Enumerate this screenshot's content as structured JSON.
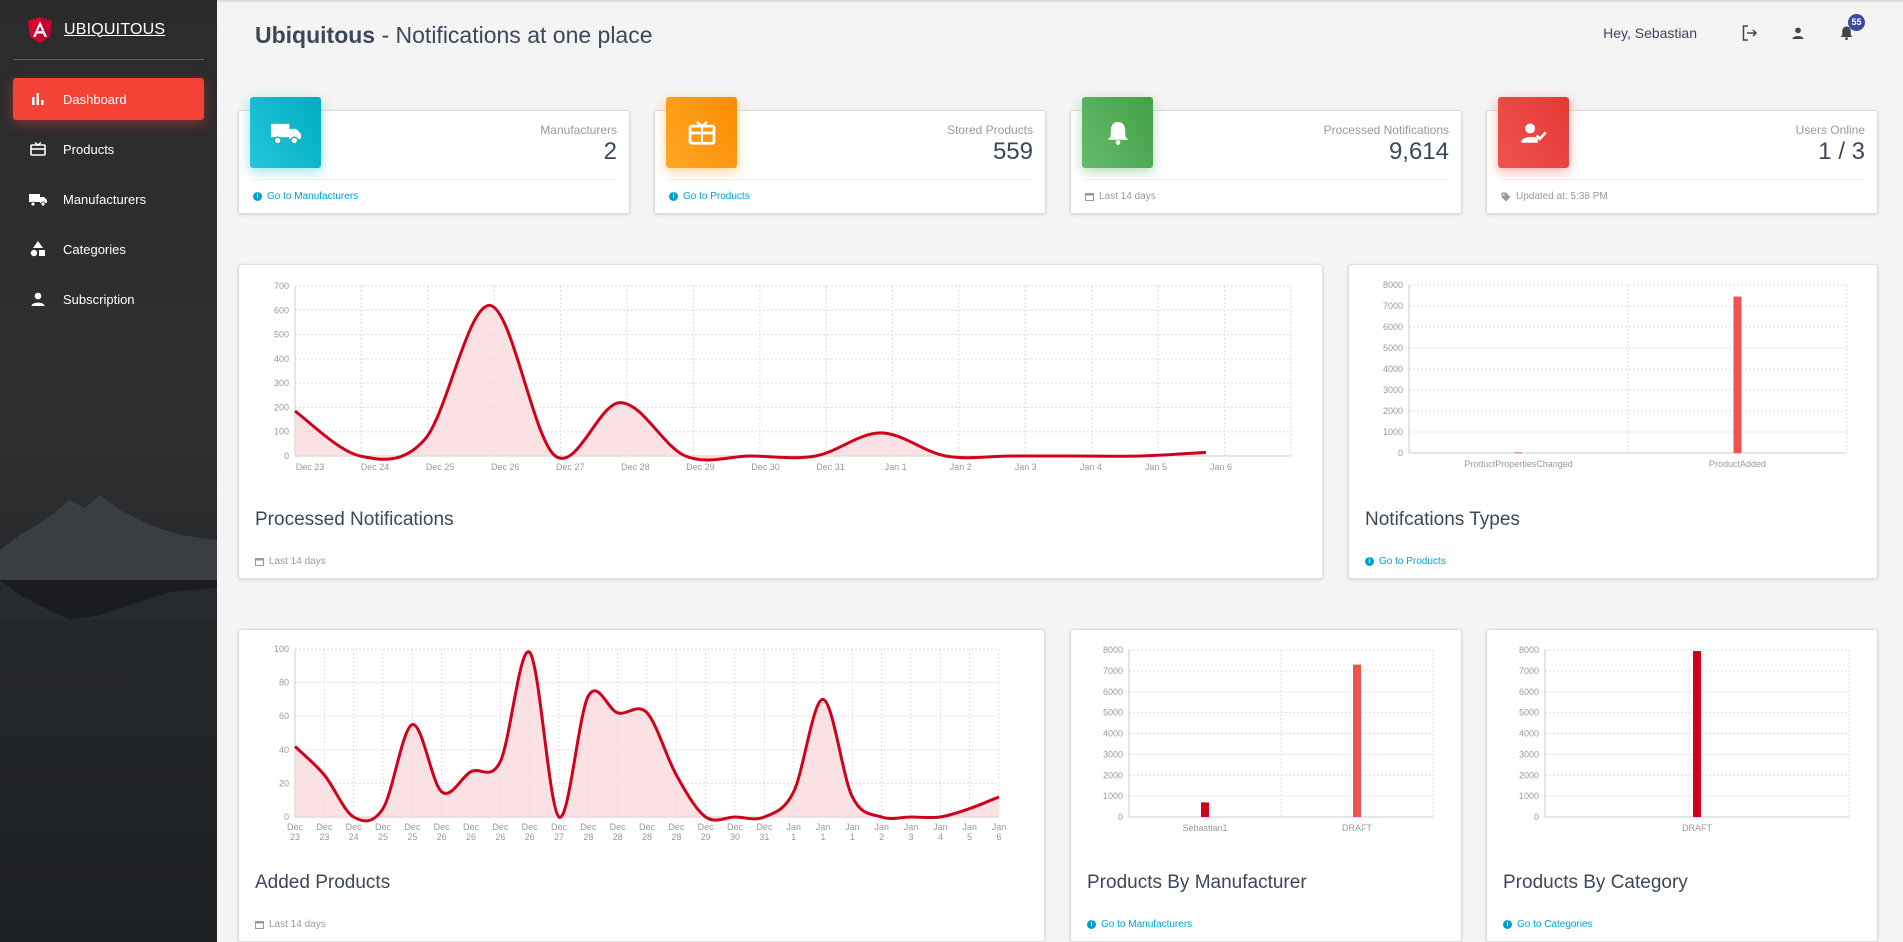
{
  "brand": {
    "name": "UBIQUITOUS",
    "logo_icon": "angular-logo-icon"
  },
  "sidebar": {
    "items": [
      {
        "label": "Dashboard",
        "icon": "bar-chart-icon",
        "active": true
      },
      {
        "label": "Products",
        "icon": "card-giftcard-icon",
        "active": false
      },
      {
        "label": "Manufacturers",
        "icon": "truck-icon",
        "active": false
      },
      {
        "label": "Categories",
        "icon": "shapes-icon",
        "active": false
      },
      {
        "label": "Subscription",
        "icon": "person-icon",
        "active": false
      }
    ],
    "active_color": "#f44336"
  },
  "header": {
    "title_bold": "Ubiquitous",
    "title_rest": " - Notifications at one place",
    "greeting": "Hey, Sebastian",
    "notification_count": "55"
  },
  "stats": [
    {
      "label": "Manufacturers",
      "value": "2",
      "footer": "Go to Manufacturers",
      "footer_type": "link",
      "icon": "truck-icon",
      "color": "#1ab5cc"
    },
    {
      "label": "Stored Products",
      "value": "559",
      "footer": "Go to Products",
      "footer_type": "link",
      "icon": "gift-icon",
      "color": "#fb9a16"
    },
    {
      "label": "Processed Notifications",
      "value": "9,614",
      "footer": "Last 14 days",
      "footer_type": "date",
      "icon": "bell-icon",
      "color": "#53ad57"
    },
    {
      "label": "Users Online",
      "value": "1 / 3",
      "footer": "Updated at: 5:38 PM",
      "footer_type": "tag",
      "icon": "user-check-icon",
      "color": "#e53e3d"
    }
  ],
  "cards": {
    "processed": {
      "title": "Processed Notifications",
      "footer": "Last 14 days"
    },
    "types": {
      "title": "Notifcations Types",
      "footer": "Go to Products"
    },
    "added": {
      "title": "Added Products",
      "footer": "Last 14 days"
    },
    "by_manufacturer": {
      "title": "Products By Manufacturer",
      "footer": "Go to Manufacturers"
    },
    "by_category": {
      "title": "Products By Category",
      "footer": "Go to Categories"
    }
  },
  "chart_data": [
    {
      "id": "processed",
      "type": "line",
      "categories": [
        "Dec 23",
        "Dec 24",
        "Dec 25",
        "Dec 26",
        "Dec 27",
        "Dec 28",
        "Dec 29",
        "Dec 30",
        "Dec 31",
        "Jan 1",
        "Jan 2",
        "Jan 3",
        "Jan 4",
        "Jan 5",
        "Jan 6"
      ],
      "values": [
        185,
        0,
        70,
        620,
        0,
        220,
        0,
        0,
        0,
        95,
        0,
        0,
        0,
        0,
        15
      ],
      "yticks": [
        0,
        100,
        200,
        300,
        400,
        500,
        600,
        700
      ],
      "ylim": [
        0,
        700
      ],
      "grid": true,
      "color": "#d0021b",
      "fill": "#f8d7da"
    },
    {
      "id": "types",
      "type": "bar",
      "categories": [
        "ProductPropertiesChanged",
        "ProductAdded"
      ],
      "values": [
        30,
        7450
      ],
      "yticks": [
        0,
        1000,
        2000,
        3000,
        4000,
        5000,
        6000,
        7000,
        8000
      ],
      "ylim": [
        0,
        8000
      ],
      "grid": true,
      "color": "#ef5350"
    },
    {
      "id": "added",
      "type": "line",
      "categories": [
        "Dec 23",
        "Dec 23",
        "Dec 24",
        "Dec 25",
        "Dec 25",
        "Dec 26",
        "Dec 26",
        "Dec 26",
        "Dec 26",
        "Dec 27",
        "Dec 28",
        "Dec 28",
        "Dec 28",
        "Dec 28",
        "Dec 29",
        "Dec 30",
        "Dec 31",
        "Jan 1",
        "Jan 1",
        "Jan 1",
        "Jan 2",
        "Jan 3",
        "Jan 4",
        "Jan 5",
        "Jan 6"
      ],
      "values": [
        42,
        25,
        0,
        5,
        55,
        15,
        27,
        33,
        98,
        0,
        72,
        62,
        62,
        25,
        0,
        0,
        0,
        15,
        70,
        12,
        0,
        0,
        0,
        5,
        12
      ],
      "yticks": [
        0,
        20,
        40,
        60,
        80,
        100
      ],
      "ylim": [
        0,
        100
      ],
      "grid": true,
      "color": "#d0021b",
      "fill": "#f8d7da"
    },
    {
      "id": "by_manufacturer",
      "type": "bar",
      "categories": [
        "Sebastian1",
        "DRAFT"
      ],
      "values": [
        700,
        7300
      ],
      "colors": [
        "#d0021b",
        "#ef5350"
      ],
      "yticks": [
        0,
        1000,
        2000,
        3000,
        4000,
        5000,
        6000,
        7000,
        8000
      ],
      "ylim": [
        0,
        8000
      ],
      "grid": true
    },
    {
      "id": "by_category",
      "type": "bar",
      "categories": [
        "DRAFT"
      ],
      "values": [
        7950
      ],
      "colors": [
        "#d0021b"
      ],
      "yticks": [
        0,
        1000,
        2000,
        3000,
        4000,
        5000,
        6000,
        7000,
        8000
      ],
      "ylim": [
        0,
        8000
      ],
      "grid": true
    }
  ]
}
